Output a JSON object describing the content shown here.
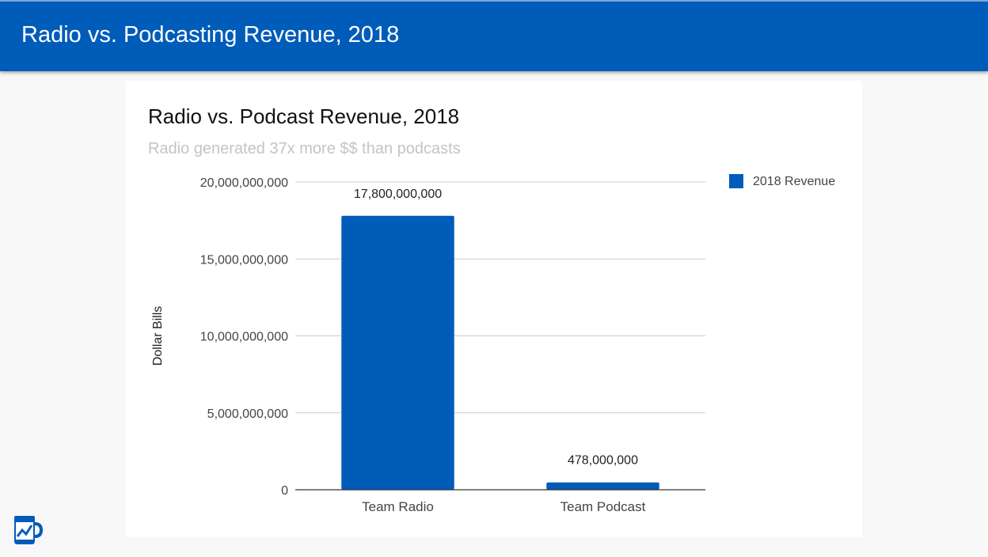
{
  "header": {
    "title": "Radio vs. Podcasting Revenue, 2018"
  },
  "colors": {
    "header_bg": "#005cb9",
    "bar": "#005cb9",
    "grid": "#cccccc"
  },
  "icons": {
    "logo": "coffee-mug-chart-logo-icon"
  },
  "chart_data": {
    "type": "bar",
    "title": "Radio vs. Podcast Revenue, 2018",
    "subtitle": "Radio generated 37x more $$ than podcasts",
    "xlabel": "",
    "ylabel": "Dollar Bills",
    "categories": [
      "Team Radio",
      "Team Podcast"
    ],
    "series": [
      {
        "name": "2018 Revenue",
        "values": [
          17800000000,
          478000000
        ],
        "color": "#005cb9"
      }
    ],
    "data_labels": [
      "17,800,000,000",
      "478,000,000"
    ],
    "ylim": [
      0,
      20000000000
    ],
    "yticks": [
      0,
      5000000000,
      10000000000,
      15000000000,
      20000000000
    ],
    "ytick_labels": [
      "0",
      "5,000,000,000",
      "10,000,000,000",
      "15,000,000,000",
      "20,000,000,000"
    ],
    "grid": true,
    "legend": "top-right"
  }
}
